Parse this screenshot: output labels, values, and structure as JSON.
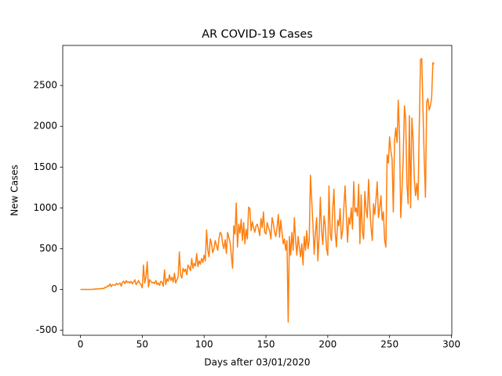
{
  "chart_data": {
    "type": "line",
    "title": "AR COVID-19 Cases",
    "xlabel": "Days after 03/01/2020",
    "ylabel": "New Cases",
    "x": [
      0,
      1,
      2,
      3,
      4,
      5,
      6,
      7,
      8,
      9,
      10,
      11,
      12,
      13,
      14,
      15,
      16,
      17,
      18,
      19,
      20,
      21,
      22,
      23,
      24,
      25,
      26,
      27,
      28,
      29,
      30,
      31,
      32,
      33,
      34,
      35,
      36,
      37,
      38,
      39,
      40,
      41,
      42,
      43,
      44,
      45,
      46,
      47,
      48,
      49,
      50,
      51,
      52,
      53,
      54,
      55,
      56,
      57,
      58,
      59,
      60,
      61,
      62,
      63,
      64,
      65,
      66,
      67,
      68,
      69,
      70,
      71,
      72,
      73,
      74,
      75,
      76,
      77,
      78,
      79,
      80,
      81,
      82,
      83,
      84,
      85,
      86,
      87,
      88,
      89,
      90,
      91,
      92,
      93,
      94,
      95,
      96,
      97,
      98,
      99,
      100,
      101,
      102,
      103,
      104,
      105,
      106,
      107,
      108,
      109,
      110,
      111,
      112,
      113,
      114,
      115,
      116,
      117,
      118,
      119,
      120,
      121,
      122,
      123,
      124,
      125,
      126,
      127,
      128,
      129,
      130,
      131,
      132,
      133,
      134,
      135,
      136,
      137,
      138,
      139,
      140,
      141,
      142,
      143,
      144,
      145,
      146,
      147,
      148,
      149,
      150,
      151,
      152,
      153,
      154,
      155,
      156,
      157,
      158,
      159,
      160,
      161,
      162,
      163,
      164,
      165,
      166,
      167,
      168,
      169,
      170,
      171,
      172,
      173,
      174,
      175,
      176,
      177,
      178,
      179,
      180,
      181,
      182,
      183,
      184,
      185,
      186,
      187,
      188,
      189,
      190,
      191,
      192,
      193,
      194,
      195,
      196,
      197,
      198,
      199,
      200,
      201,
      202,
      203,
      204,
      205,
      206,
      207,
      208,
      209,
      210,
      211,
      212,
      213,
      214,
      215,
      216,
      217,
      218,
      219,
      220,
      221,
      222,
      223,
      224,
      225,
      226,
      227,
      228,
      229,
      230,
      231,
      232,
      233,
      234,
      235,
      236,
      237,
      238,
      239,
      240,
      241,
      242,
      243,
      244,
      245,
      246,
      247,
      248,
      249,
      250,
      251,
      252,
      253,
      254,
      255,
      256,
      257,
      258,
      259,
      260,
      261,
      262,
      263,
      264,
      265,
      266,
      267,
      268,
      269,
      270,
      271,
      272,
      273,
      274,
      275,
      276,
      277,
      278,
      279,
      280,
      281,
      282,
      283,
      284,
      285,
      286
    ],
    "series": [
      {
        "name": "New Cases",
        "color": "#ff7f0e",
        "values": [
          0,
          0,
          0,
          0,
          0,
          0,
          0,
          0,
          0,
          0,
          5,
          0,
          8,
          5,
          10,
          4,
          12,
          8,
          15,
          10,
          30,
          25,
          45,
          40,
          70,
          35,
          60,
          55,
          50,
          75,
          60,
          70,
          80,
          40,
          90,
          100,
          70,
          110,
          85,
          95,
          80,
          100,
          70,
          90,
          120,
          60,
          80,
          110,
          75,
          60,
          20,
          300,
          80,
          150,
          340,
          30,
          120,
          100,
          80,
          90,
          70,
          110,
          60,
          80,
          50,
          100,
          90,
          40,
          240,
          60,
          130,
          100,
          180,
          110,
          150,
          90,
          200,
          80,
          120,
          150,
          460,
          180,
          140,
          260,
          220,
          250,
          180,
          300,
          270,
          230,
          380,
          260,
          320,
          290,
          440,
          280,
          350,
          310,
          380,
          330,
          420,
          350,
          730,
          480,
          400,
          620,
          560,
          450,
          500,
          600,
          540,
          480,
          620,
          700,
          680,
          560,
          500,
          610,
          440,
          700,
          640,
          580,
          420,
          260,
          780,
          680,
          1060,
          520,
          800,
          690,
          860,
          600,
          820,
          560,
          740,
          620,
          1010,
          990,
          720,
          830,
          760,
          700,
          780,
          800,
          740,
          660,
          870,
          760,
          950,
          700,
          680,
          820,
          760,
          720,
          620,
          880,
          810,
          700,
          650,
          760,
          920,
          640,
          850,
          700,
          560,
          620,
          480,
          600,
          -400,
          650,
          420,
          700,
          480,
          880,
          600,
          420,
          650,
          520,
          400,
          560,
          300,
          650,
          480,
          720,
          500,
          600,
          1400,
          1100,
          800,
          430,
          700,
          880,
          350,
          650,
          1130,
          720,
          550,
          900,
          780,
          500,
          420,
          1270,
          680,
          600,
          980,
          1230,
          700,
          520,
          850,
          780,
          990,
          620,
          720,
          1000,
          1270,
          920,
          580,
          880,
          800,
          1000,
          740,
          1320,
          950,
          1000,
          900,
          1290,
          560,
          1160,
          700,
          620,
          1200,
          980,
          880,
          1350,
          1000,
          760,
          600,
          1050,
          920,
          1100,
          1320,
          880,
          1000,
          1150,
          850,
          950,
          600,
          520,
          1650,
          1550,
          1870,
          1700,
          1600,
          950,
          1810,
          1980,
          1800,
          2320,
          1900,
          880,
          1200,
          1600,
          2250,
          2100,
          1300,
          1050,
          2130,
          1000,
          2100,
          1850,
          1350,
          1150,
          1300,
          1100,
          2000,
          2820,
          2830,
          2200,
          1600,
          1130,
          2300,
          2340,
          2200,
          2250,
          2350,
          2780,
          2760
        ]
      }
    ],
    "xlim": [
      -14.3,
      300.3
    ],
    "ylim": [
      -561,
      2991
    ],
    "xticks": [
      0,
      50,
      100,
      150,
      200,
      250,
      300
    ],
    "yticks": [
      -500,
      0,
      500,
      1000,
      1500,
      2000,
      2500
    ]
  }
}
